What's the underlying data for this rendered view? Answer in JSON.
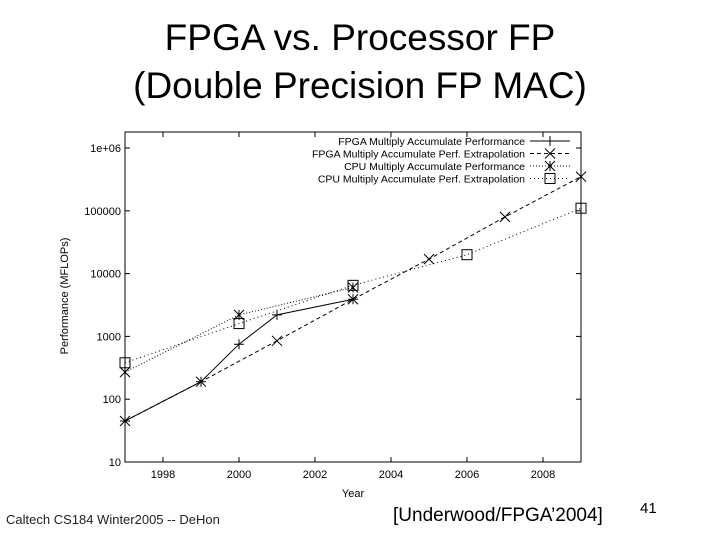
{
  "slide": {
    "title_line1": "FPGA vs. Processor FP",
    "title_line2": "(Double Precision FP MAC)",
    "footer_left": "Caltech CS184 Winter2005 -- DeHon",
    "citation": "[Underwood/FPGA’2004]",
    "page_number": "41"
  },
  "chart_data": {
    "type": "line",
    "title": "",
    "xlabel": "Year",
    "ylabel": "Performance (MFLOPs)",
    "xlim": [
      1997,
      2009
    ],
    "ylim": [
      10,
      1000000
    ],
    "yscale": "log",
    "x_ticks": [
      1998,
      2000,
      2002,
      2004,
      2006,
      2008
    ],
    "y_ticks": [
      10,
      100,
      1000,
      10000,
      100000,
      1000000
    ],
    "y_tick_labels": [
      "10",
      "100",
      "1000",
      "10000",
      "100000",
      "1e+06"
    ],
    "legend_position": "top-right",
    "series": [
      {
        "name": "FPGA Multiply Accumulate Performance",
        "marker": "plus",
        "dash": "",
        "x": [
          1997,
          1999,
          2000,
          2001,
          2003
        ],
        "y": [
          45,
          190,
          750,
          2200,
          3900
        ]
      },
      {
        "name": "FPGA Multiply Accumulate Perf. Extrapolation",
        "marker": "cross",
        "dash": "4,3",
        "x": [
          1997,
          1999,
          2001,
          2003,
          2005,
          2007,
          2009
        ],
        "y": [
          45,
          190,
          850,
          3900,
          17000,
          80000,
          350000
        ]
      },
      {
        "name": "CPU Multiply Accumulate Performance",
        "marker": "star",
        "dash": "1,2",
        "x": [
          1997,
          2000,
          2003
        ],
        "y": [
          270,
          2200,
          6000
        ]
      },
      {
        "name": "CPU Multiply Accumulate Perf. Extrapolation",
        "marker": "square",
        "dash": "1,3",
        "x": [
          1997,
          2000,
          2003,
          2006,
          2009
        ],
        "y": [
          380,
          1600,
          6500,
          20000,
          110000
        ]
      }
    ]
  }
}
